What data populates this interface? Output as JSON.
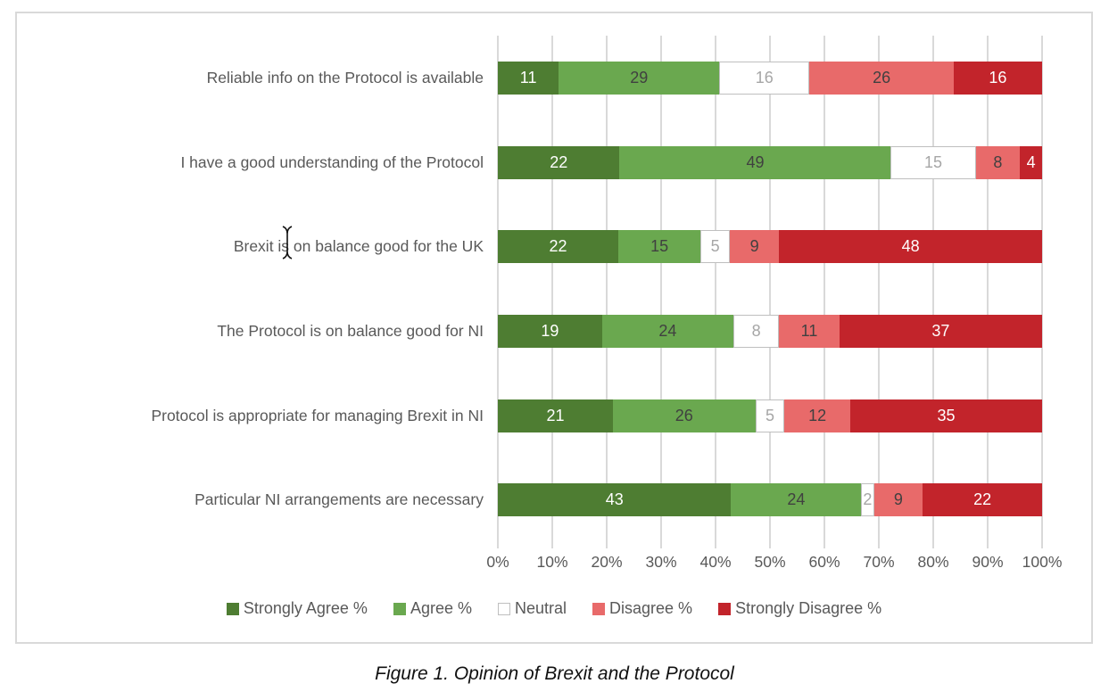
{
  "caption": "Figure 1. Opinion of Brexit and the Protocol",
  "colors": {
    "box_border": "#d9d9d9",
    "gridline": "#d9d9d9",
    "category_text": "#595959",
    "axis_text": "#595959",
    "legend_text": "#595959",
    "neutral_border": "#bfbfbf"
  },
  "icons": {
    "cursor": "text-ibeam-cursor"
  },
  "chart_data": {
    "type": "bar",
    "variant": "horizontal-stacked-100pct",
    "grid": true,
    "legend_position": "bottom",
    "xlim": [
      0,
      100
    ],
    "x_ticks": [
      "0%",
      "10%",
      "20%",
      "30%",
      "40%",
      "50%",
      "60%",
      "70%",
      "80%",
      "90%",
      "100%"
    ],
    "categories": [
      "Reliable info on the Protocol is available",
      "I have a good understanding of the Protocol",
      "Brexit is on balance good for the UK",
      "The Protocol is on balance good for NI",
      "Protocol is appropriate for managing Brexit in NI",
      "Particular NI arrangements are necessary"
    ],
    "series": [
      {
        "name": "Strongly Agree %",
        "color": "#4e7d32",
        "label_color": "#ffffff",
        "values": [
          11,
          22,
          22,
          19,
          21,
          43
        ]
      },
      {
        "name": "Agree %",
        "color": "#6aa84f",
        "label_color": "#404040",
        "values": [
          29,
          49,
          15,
          24,
          26,
          24
        ]
      },
      {
        "name": "Neutral",
        "color": "#ffffff",
        "border": "#bfbfbf",
        "label_color": "#a6a6a6",
        "values": [
          16,
          15,
          5,
          8,
          5,
          2
        ]
      },
      {
        "name": "Disagree %",
        "color": "#e86a6a",
        "label_color": "#404040",
        "values": [
          26,
          8,
          9,
          11,
          12,
          9
        ]
      },
      {
        "name": "Strongly Disagree %",
        "color": "#c2242b",
        "label_color": "#ffffff",
        "values": [
          16,
          4,
          48,
          37,
          35,
          22
        ]
      }
    ]
  }
}
